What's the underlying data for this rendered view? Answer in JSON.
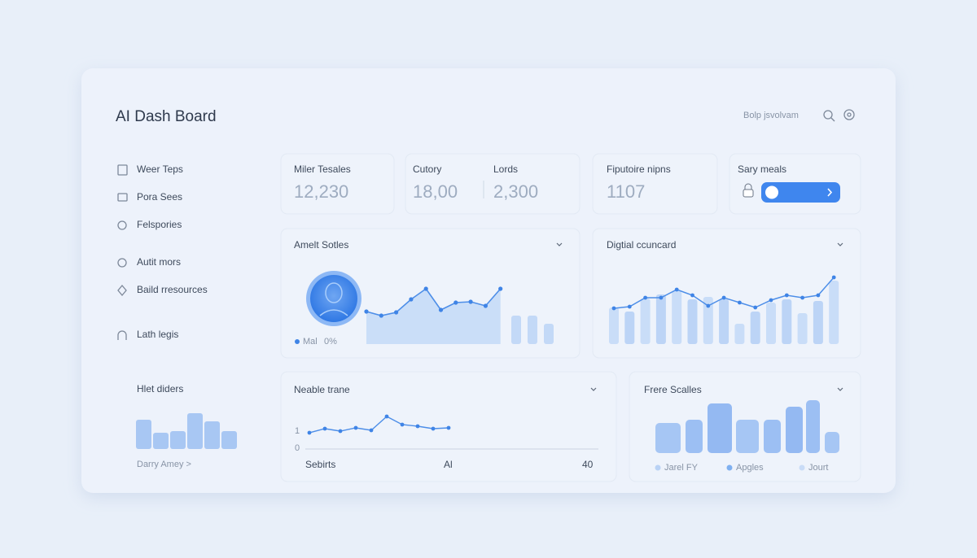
{
  "header": {
    "title": "AI Dash Board",
    "search": "Bolp jsvolvam"
  },
  "sidebar": {
    "nav": [
      "Weer Teps",
      "Pora Sees",
      "Felspories",
      "Autit mors",
      "Baild rresources",
      "Lath legis"
    ],
    "mini_chart": {
      "title": "Hlet diders",
      "values": [
        36,
        20,
        22,
        44,
        34,
        22
      ]
    },
    "link": "Darry Amey >"
  },
  "stats": [
    {
      "label": "Miler Tesales",
      "value": "12,230"
    },
    {
      "label": "Cutory",
      "value": "18,00"
    },
    {
      "label": "Lords",
      "value": "2,300"
    },
    {
      "label": "Fiputoire nipns",
      "value": "1107"
    },
    {
      "label": "Sary meals"
    }
  ],
  "sales_chart": {
    "title": "Amelt Sotles",
    "line": [
      40,
      35,
      39,
      55,
      68,
      42,
      51,
      52,
      47,
      68
    ],
    "bars": [
      35,
      35,
      25
    ],
    "legend": {
      "name": "Mal",
      "value": "0%"
    }
  },
  "digital_chart": {
    "title": "Digtial ccuncard",
    "bars": [
      45,
      40,
      56,
      61,
      65,
      55,
      58,
      55,
      25,
      40,
      51,
      55,
      38,
      53,
      78
    ],
    "line": [
      44,
      46,
      57,
      57,
      67,
      60,
      47,
      57,
      51,
      45,
      54,
      60,
      57,
      60,
      82
    ]
  },
  "trend_chart": {
    "title": "Neable trane",
    "y_labels": [
      "1",
      "0"
    ],
    "x_labels": [
      "Sebirts",
      "Al",
      "40"
    ],
    "line": [
      20,
      25,
      22,
      26,
      23,
      40,
      30,
      28,
      25,
      26
    ]
  },
  "frere_chart": {
    "title": "Frere Scalles",
    "values": [
      37,
      41,
      61,
      41,
      41,
      57,
      65,
      26
    ],
    "legend": [
      "Jarel FY",
      "Apgles",
      "Jourt"
    ]
  }
}
